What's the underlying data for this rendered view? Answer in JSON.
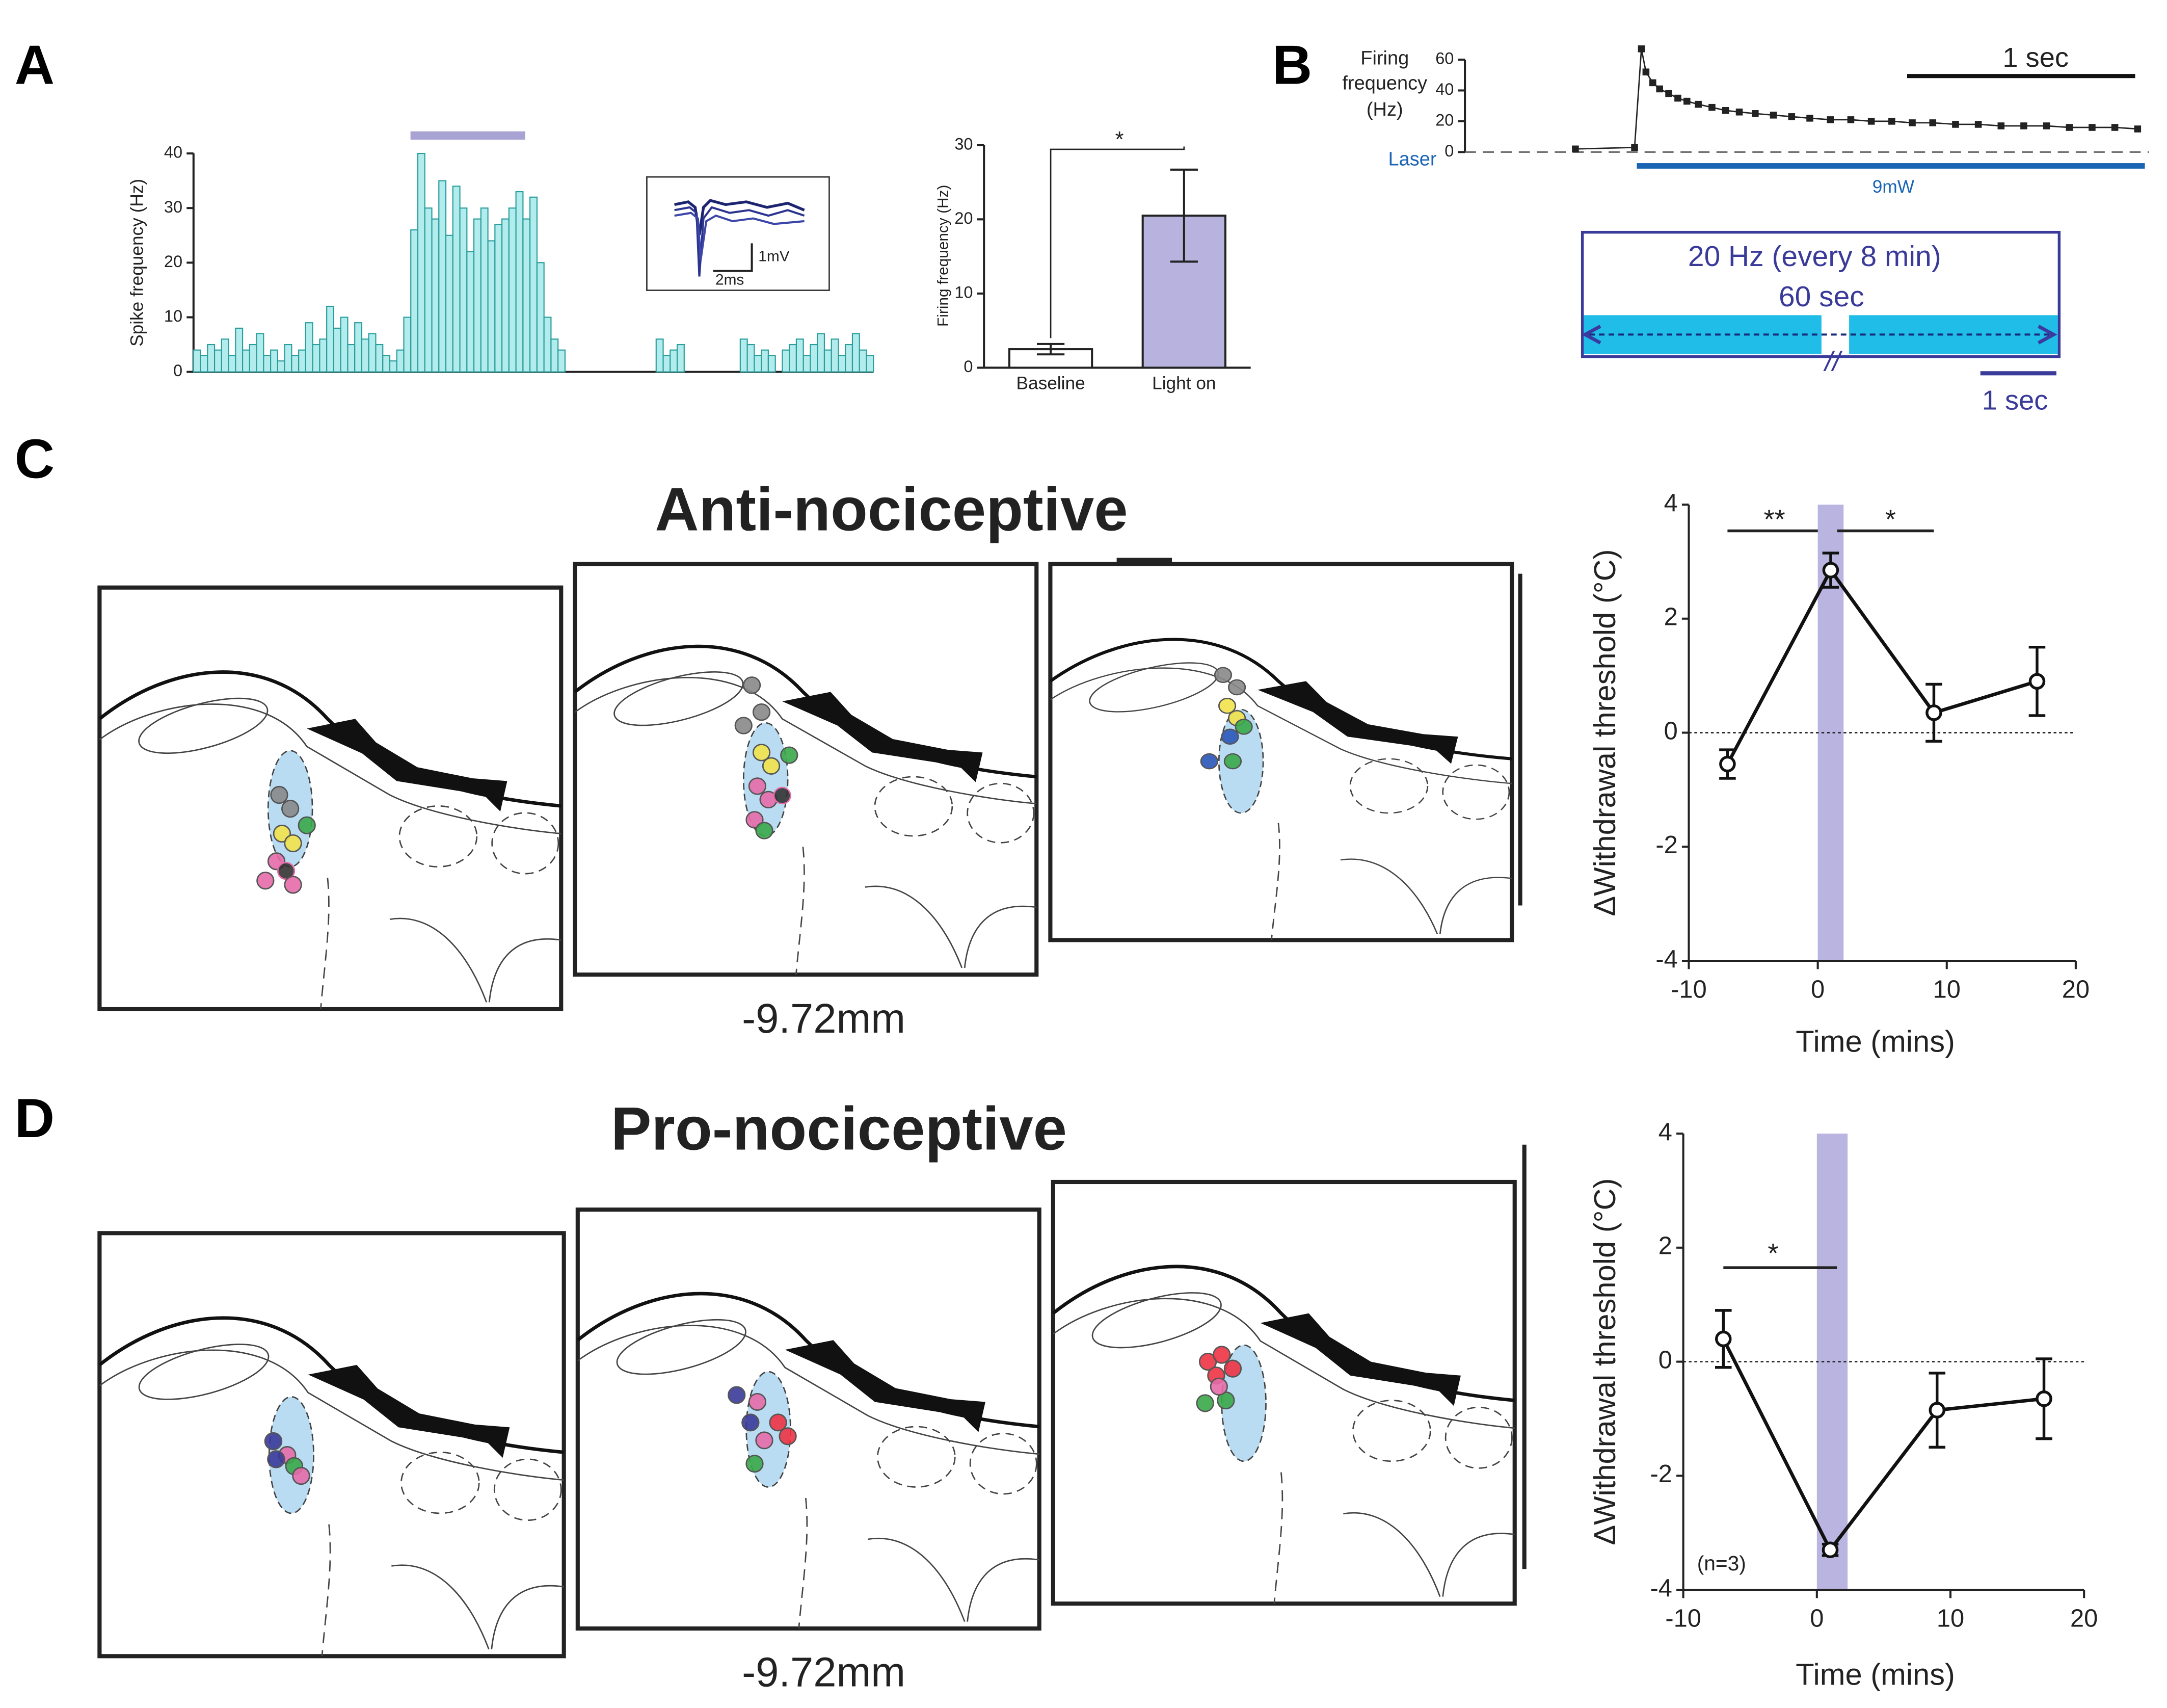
{
  "panels": [
    "A",
    "B",
    "C",
    "D"
  ],
  "stimulus": {
    "label": "20 Hz (every 8 min)",
    "duration": "60 sec",
    "break": "//",
    "scale": "1 sec"
  },
  "sections": [
    {
      "title": "Anti-nociceptive",
      "coordinate": "-9.72mm"
    },
    {
      "title": "Pro-nociceptive",
      "coordinate": "-9.72mm"
    }
  ],
  "chart_data": [
    {
      "type": "bar",
      "ylabel": "Spike frequency (Hz)",
      "color": "#b3ecec",
      "values": [
        4,
        3,
        5,
        4,
        6,
        3,
        8,
        4,
        5,
        7,
        3,
        4,
        2,
        5,
        3,
        4,
        9,
        5,
        6,
        12,
        8,
        10,
        5,
        9,
        6,
        7,
        5,
        3,
        2,
        4,
        10,
        26,
        40,
        30,
        28,
        35,
        25,
        34,
        30,
        22,
        28,
        30,
        24,
        27,
        28,
        30,
        33,
        28,
        32,
        20,
        10,
        6,
        4,
        0,
        0,
        0,
        0,
        0,
        0,
        0,
        0,
        0,
        0,
        0,
        0,
        0,
        6,
        3,
        4,
        5,
        0,
        0,
        0,
        0,
        0,
        0,
        0,
        0,
        6,
        5,
        3,
        4,
        3,
        0,
        4,
        5,
        6,
        3,
        5,
        7,
        4,
        6,
        3,
        5,
        7,
        4,
        3
      ],
      "ylim": [
        0,
        40
      ],
      "yticks": [
        0,
        10,
        20,
        30,
        40
      ],
      "annotations": [
        "2ms",
        "1mV"
      ]
    },
    {
      "type": "bar",
      "ylabel": "Firing frequency (Hz)",
      "categories": [
        "Baseline",
        "Light on"
      ],
      "values": [
        2.5,
        20.5
      ],
      "errors": [
        0.7,
        6.2
      ],
      "colors": [
        "#ffffff",
        "#b8b2de"
      ],
      "ylim": [
        0,
        30
      ],
      "yticks": [
        0,
        10,
        20,
        30
      ],
      "annotations": [
        "*"
      ]
    },
    {
      "type": "line",
      "ylabel": [
        "Firing",
        "frequency",
        "(Hz)"
      ],
      "marker": "square",
      "color": "#222222",
      "x": [
        -0.27,
        -0.01,
        0.02,
        0.04,
        0.07,
        0.1,
        0.14,
        0.18,
        0.22,
        0.27,
        0.33,
        0.39,
        0.45,
        0.52,
        0.6,
        0.68,
        0.76,
        0.85,
        0.94,
        1.03,
        1.12,
        1.21,
        1.3,
        1.4,
        1.5,
        1.6,
        1.7,
        1.8,
        1.9,
        2.0,
        2.1,
        2.2
      ],
      "values": [
        2,
        3,
        67,
        52,
        45,
        41,
        38,
        35,
        33,
        31,
        29,
        27,
        26,
        25,
        24,
        23,
        22,
        21,
        21,
        20,
        20,
        19,
        19,
        18,
        18,
        17,
        17,
        17,
        16,
        16,
        16,
        15
      ],
      "xlim": [
        -0.3,
        2.25
      ],
      "ylim": [
        0,
        70
      ],
      "yticks": [
        0,
        20,
        40,
        60
      ],
      "annotations": [
        "Laser",
        "9mW",
        "1 sec"
      ]
    },
    {
      "type": "line",
      "ylabel": "ΔWithdrawal threshold (°C)",
      "xlabel": "Time (mins)",
      "marker": "circle",
      "color": "#111111",
      "x": [
        -7,
        1,
        9,
        17
      ],
      "values": [
        -0.55,
        2.85,
        0.35,
        0.9
      ],
      "errors": [
        0.25,
        0.3,
        0.5,
        0.6
      ],
      "xlim": [
        -10,
        20
      ],
      "xticks": [
        -10,
        0,
        10,
        20
      ],
      "ylim": [
        -4,
        4
      ],
      "yticks": [
        -4,
        -2,
        0,
        2,
        4
      ],
      "annotations": [
        "**",
        "*"
      ]
    },
    {
      "type": "line",
      "ylabel": "ΔWithdrawal threshold (°C)",
      "xlabel": "Time (mins)",
      "marker": "circle",
      "color": "#111111",
      "x": [
        -7,
        1,
        9,
        17
      ],
      "values": [
        0.4,
        -3.3,
        -0.85,
        -0.65
      ],
      "errors": [
        0.5,
        0.1,
        0.65,
        0.7
      ],
      "xlim": [
        -10,
        20
      ],
      "xticks": [
        -10,
        0,
        10,
        20
      ],
      "ylim": [
        -4,
        4
      ],
      "yticks": [
        -4,
        -2,
        0,
        2,
        4
      ],
      "annotations": [
        "*",
        "(n=3)"
      ]
    }
  ]
}
